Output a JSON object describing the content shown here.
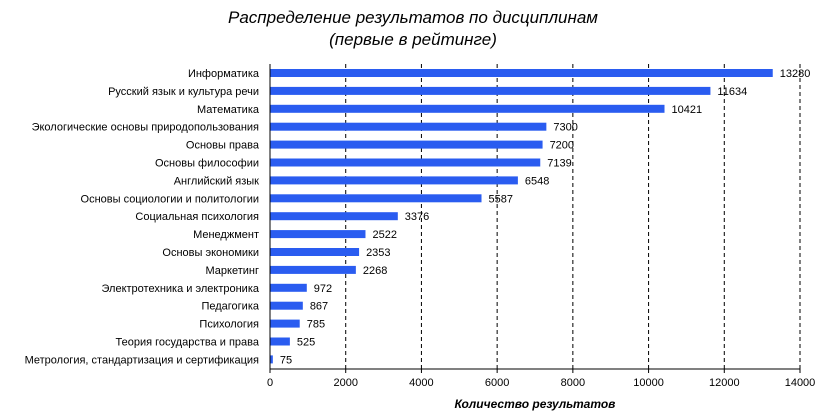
{
  "chart_data": {
    "type": "bar",
    "orientation": "horizontal",
    "title": "Распределение результатов по дисциплинам",
    "subtitle": "(первые в рейтинге)",
    "xlabel": "Количество результатов",
    "ylabel": "",
    "xlim": [
      0,
      14000
    ],
    "xticks": [
      0,
      2000,
      4000,
      6000,
      8000,
      10000,
      12000,
      14000
    ],
    "grid": "vertical-dashed",
    "legend": "none",
    "bar_color": "#2a5cf0",
    "categories": [
      "Информатика",
      "Русский язык и культура речи",
      "Математика",
      "Экологические основы природопользования",
      "Основы права",
      "Основы философии",
      "Английский язык",
      "Основы социологии и политологии",
      "Социальная психология",
      "Менеджмент",
      "Основы экономики",
      "Маркетинг",
      "Электротехника и электроника",
      "Педагогика",
      "Психология",
      "Теория государства и права",
      "Метрология, стандартизация и сертификация"
    ],
    "values": [
      13280,
      11634,
      10421,
      7300,
      7200,
      7139,
      6548,
      5587,
      3376,
      2522,
      2353,
      2268,
      972,
      867,
      785,
      525,
      75
    ]
  }
}
